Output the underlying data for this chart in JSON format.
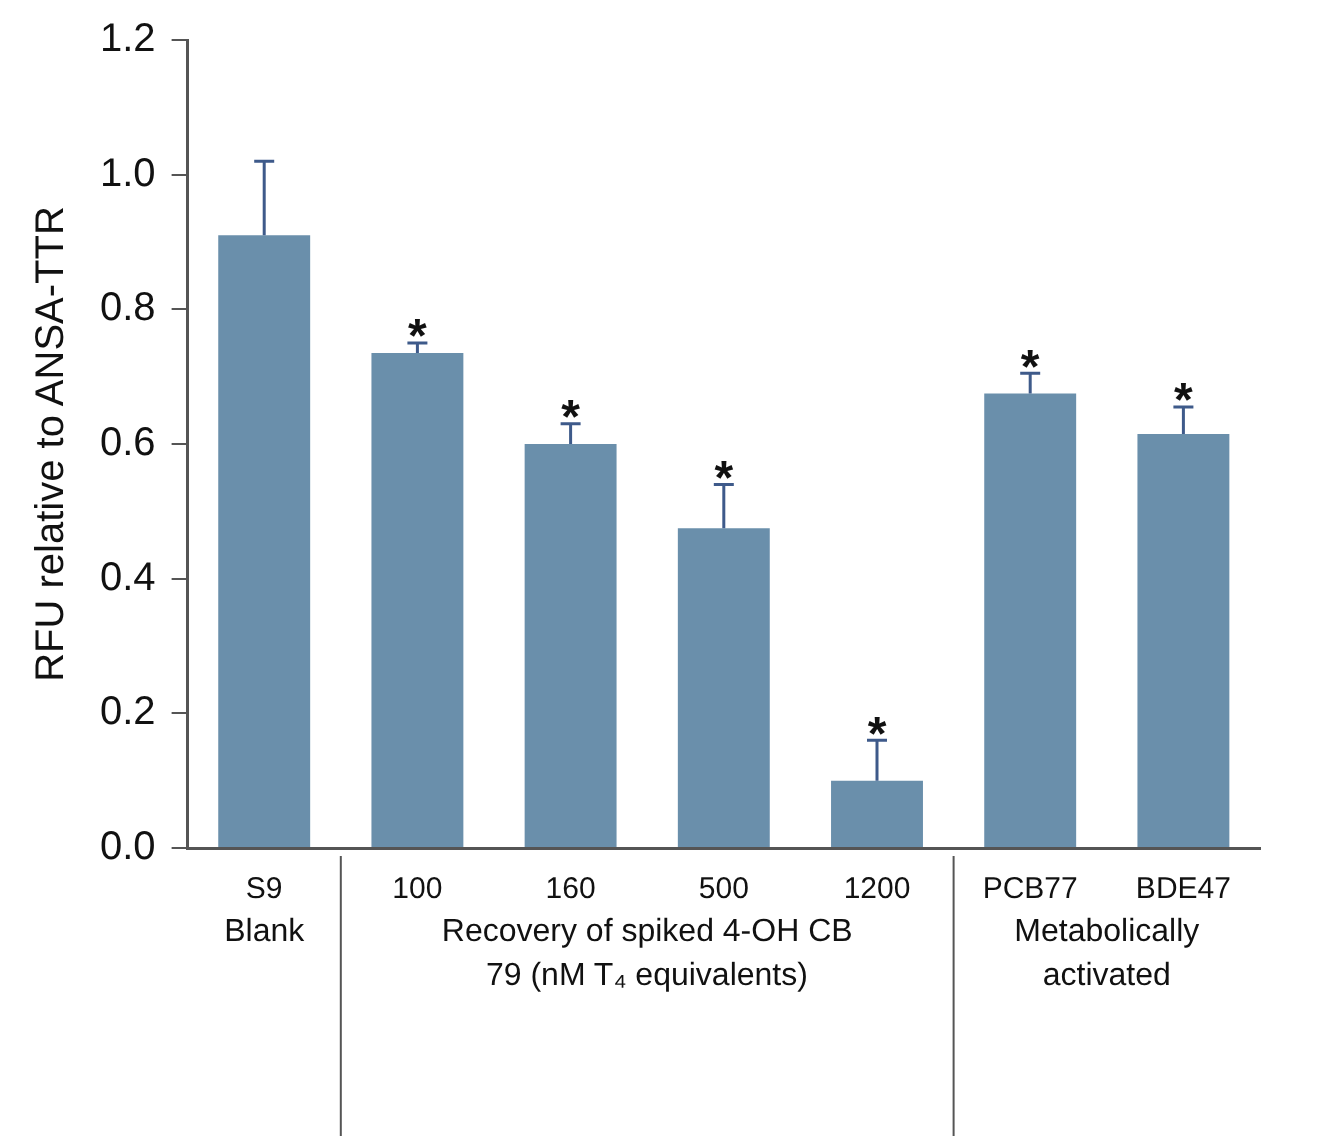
{
  "chart_data": {
    "type": "bar",
    "ylabel": "RFU relative to ANSA-TTR",
    "categories": [
      "S9",
      "100",
      "160",
      "500",
      "1200",
      "PCB77",
      "BDE47"
    ],
    "values": [
      0.91,
      0.735,
      0.6,
      0.475,
      0.1,
      0.675,
      0.615
    ],
    "errors": [
      [
        0.91,
        1.02
      ],
      [
        0.735,
        0.75
      ],
      [
        0.6,
        0.63
      ],
      [
        0.475,
        0.54
      ],
      [
        0.1,
        0.16
      ],
      [
        0.675,
        0.705
      ],
      [
        0.615,
        0.655
      ]
    ],
    "color": "#6a8fab",
    "ylim": [
      0,
      1.2
    ],
    "yticks": [
      {
        "value": 0,
        "label": "0.0"
      },
      {
        "value": 0.2,
        "label": "0.2"
      },
      {
        "value": 0.4,
        "label": "0.4"
      },
      {
        "value": 0.6,
        "label": "0.6"
      },
      {
        "value": 0.8,
        "label": "0.8"
      },
      {
        "value": 1,
        "label": "1.0"
      },
      {
        "value": 1.2,
        "label": "1.2"
      }
    ],
    "grid": false,
    "legend": false,
    "annotations": [
      {
        "text": "*",
        "x": "100",
        "y": 0.75
      },
      {
        "text": "*",
        "x": "160",
        "y": 0.63
      },
      {
        "text": "*",
        "x": "500",
        "y": 0.54
      },
      {
        "text": "*",
        "x": "1200",
        "y": 0.16
      },
      {
        "text": "*",
        "x": "PCB77",
        "y": 0.705
      },
      {
        "text": "*",
        "x": "BDE47",
        "y": 0.655
      },
      "Blank",
      "Recovery of spiked 4-OH CB 79 (nM T₄ equivalents)",
      "Metabolically activated"
    ]
  }
}
